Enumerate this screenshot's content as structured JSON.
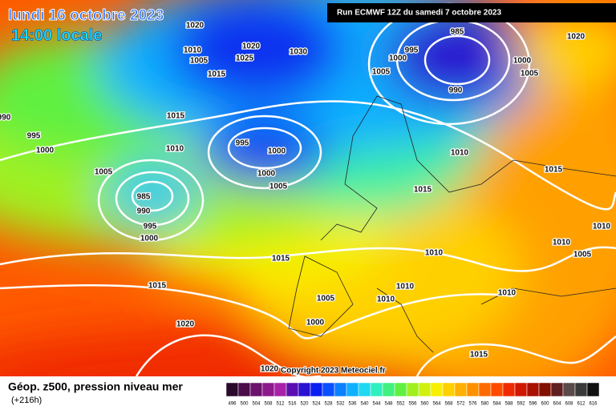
{
  "header": {
    "title": "lundi 16 octobre 2023",
    "time": "14:00 locale",
    "run": "Run ECMWF 12Z du samedi 7 octobre 2023"
  },
  "isobar_labels": [
    1020,
    1010,
    1005,
    1015,
    1025,
    1020,
    1030,
    985,
    995,
    1000,
    1005,
    990,
    1000,
    1005,
    1020,
    1015,
    990,
    995,
    1000,
    1010,
    995,
    1000,
    1000,
    1005,
    1005,
    985,
    990,
    995,
    1000,
    1010,
    1015,
    1015,
    1010,
    1010,
    1005,
    1015,
    1010,
    1015,
    1010,
    1010,
    1010,
    1005,
    1000,
    1020,
    1015,
    1020
  ],
  "footer": {
    "copyright": "Copyright 2023 Meteociel.fr",
    "field": "Géop. z500, pression niveau mer",
    "lead": "(+216h)"
  },
  "scale": {
    "labels": [
      496,
      500,
      504,
      508,
      512,
      516,
      520,
      524,
      528,
      532,
      536,
      540,
      544,
      548,
      552,
      556,
      560,
      564,
      568,
      572,
      576,
      580,
      584,
      588,
      592,
      596,
      600,
      604,
      608,
      612,
      616
    ],
    "colors": [
      "#2a0a2a",
      "#4a0c4a",
      "#6c126c",
      "#8c1a8c",
      "#a822a8",
      "#5a10b0",
      "#2a10d0",
      "#0a20f0",
      "#0a50ff",
      "#0a80ff",
      "#10b0ff",
      "#20d8f0",
      "#30f0c0",
      "#40f080",
      "#60f040",
      "#a0f020",
      "#d0f010",
      "#f8f000",
      "#ffd000",
      "#ffb000",
      "#ff9000",
      "#ff6a00",
      "#ff4a00",
      "#f02a00",
      "#d01800",
      "#a81000",
      "#801000",
      "#602020",
      "#5a4a4a",
      "#3a3a3a",
      "#101010"
    ]
  }
}
